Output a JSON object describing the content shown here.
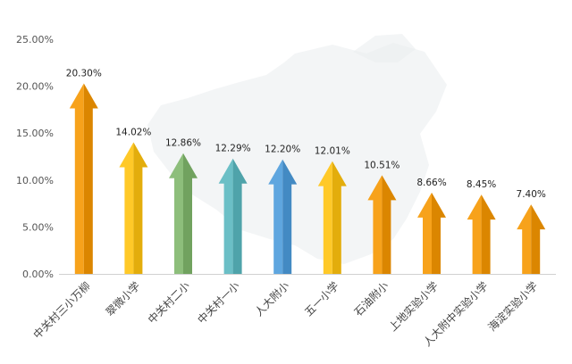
{
  "chart_data": {
    "type": "bar",
    "title": "",
    "xlabel": "",
    "ylabel": "",
    "ylim": [
      0,
      25
    ],
    "y_ticks": [
      "0.00%",
      "5.00%",
      "10.00%",
      "15.00%",
      "20.00%",
      "25.00%"
    ],
    "y_tick_values": [
      0,
      5,
      10,
      15,
      20,
      25
    ],
    "grid": false,
    "legend": "none",
    "background": "faint-china-map",
    "categories": [
      "中关村三小万柳",
      "翠微小学",
      "中关村二小",
      "中关村一小",
      "人大附小",
      "五一小学",
      "石油附小",
      "上地实验小学",
      "人大附中实验小学",
      "海淀实验小学"
    ],
    "values": [
      20.3,
      14.02,
      12.86,
      12.29,
      12.2,
      12.01,
      10.51,
      8.66,
      8.45,
      7.4
    ],
    "data_labels": [
      "20.30%",
      "14.02%",
      "12.86%",
      "12.29%",
      "12.20%",
      "12.01%",
      "10.51%",
      "8.66%",
      "8.45%",
      "7.40%"
    ],
    "colors": [
      "#F7A21B",
      "#FFC928",
      "#8DBE7B",
      "#6BBFC6",
      "#5FA6DF",
      "#FFC928",
      "#F7A21B",
      "#F7A21B",
      "#F7A21B",
      "#F7A21B"
    ]
  }
}
